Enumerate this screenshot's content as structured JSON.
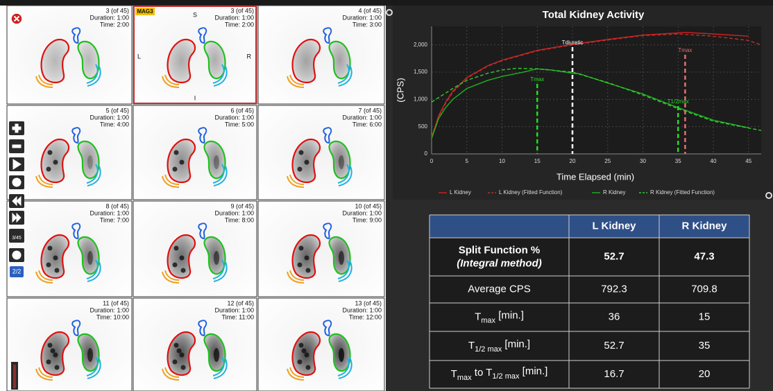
{
  "viewer": {
    "tag": "MAG3",
    "orientation": {
      "top": "S",
      "left": "L",
      "right": "R",
      "bottom": "I"
    },
    "frame_counter": "3/45",
    "page_counter": "2/2",
    "frames": [
      {
        "number": "3 (of 45)",
        "duration": "Duration: 1:00",
        "time": "Time: 2:00"
      },
      {
        "number": "3 (of 45)",
        "duration": "Duration: 1:00",
        "time": "Time: 2:00"
      },
      {
        "number": "4 (of 45)",
        "duration": "Duration: 1:00",
        "time": "Time: 3:00"
      },
      {
        "number": "5 (of 45)",
        "duration": "Duration: 1:00",
        "time": "Time: 4:00"
      },
      {
        "number": "6 (of 45)",
        "duration": "Duration: 1:00",
        "time": "Time: 5:00"
      },
      {
        "number": "7 (of 45)",
        "duration": "Duration: 1:00",
        "time": "Time: 6:00"
      },
      {
        "number": "8 (of 45)",
        "duration": "Duration: 1:00",
        "time": "Time: 7:00"
      },
      {
        "number": "9 (of 45)",
        "duration": "Duration: 1:00",
        "time": "Time: 8:00"
      },
      {
        "number": "10 (of 45)",
        "duration": "Duration: 1:00",
        "time": "Time: 9:00"
      },
      {
        "number": "11 (of 45)",
        "duration": "Duration: 1:00",
        "time": "Time: 10:00"
      },
      {
        "number": "12 (of 45)",
        "duration": "Duration: 1:00",
        "time": "Time: 11:00"
      },
      {
        "number": "13 (of 45)",
        "duration": "Duration: 1:00",
        "time": "Time: 12:00"
      }
    ]
  },
  "chart": {
    "type": "line",
    "title": "Total Kidney Activity",
    "xlabel": "Time Elapsed (min)",
    "ylabel": "(CPS)",
    "xlim": [
      0,
      46.8
    ],
    "ylim": [
      0,
      2340
    ],
    "xticks": [
      0,
      5,
      10,
      15,
      20,
      25,
      30,
      35,
      40,
      45
    ],
    "yticks": [
      0,
      500,
      {
        "value": 1000,
        "label": "1,000"
      },
      {
        "value": 1500,
        "label": "1,500"
      },
      {
        "value": 2000,
        "label": "2,000"
      }
    ],
    "grid": true,
    "series": [
      {
        "name": "L Kidney",
        "color": "#d42020",
        "dashed": false,
        "x": [
          0,
          1,
          2,
          3,
          5,
          8,
          10,
          15,
          20,
          25,
          30,
          35,
          36,
          40,
          45
        ],
        "values": [
          300,
          700,
          950,
          1150,
          1400,
          1620,
          1720,
          1900,
          2010,
          2100,
          2180,
          2220,
          2230,
          2200,
          2160
        ]
      },
      {
        "name": "L Kidney (Fitted Function)",
        "color": "#b83030",
        "dashed": true,
        "x": [
          0,
          1,
          2,
          3,
          5,
          8,
          10,
          15,
          20,
          25,
          30,
          35,
          40,
          45,
          46.8
        ],
        "values": [
          320,
          680,
          930,
          1130,
          1390,
          1610,
          1710,
          1890,
          2000,
          2090,
          2170,
          2200,
          2160,
          2080,
          2000
        ]
      },
      {
        "name": "R Kidney",
        "color": "#1fb31f",
        "dashed": false,
        "x": [
          0,
          1,
          2,
          3,
          5,
          8,
          10,
          13,
          15,
          17,
          20,
          21,
          25,
          30,
          35,
          40,
          45
        ],
        "values": [
          280,
          650,
          850,
          1000,
          1200,
          1350,
          1420,
          1500,
          1560,
          1540,
          1480,
          1470,
          1300,
          1100,
          850,
          620,
          480
        ]
      },
      {
        "name": "R Kidney (Fitted Function)",
        "color": "#33cc33",
        "dashed": true,
        "x": [
          0,
          3,
          5,
          8,
          10,
          12,
          15,
          20,
          25,
          30,
          35,
          40,
          46.8
        ],
        "values": [
          950,
          1200,
          1350,
          1480,
          1540,
          1570,
          1560,
          1500,
          1310,
          1080,
          830,
          600,
          430
        ]
      }
    ],
    "annotations": [
      {
        "text": "Tmax",
        "x": 15,
        "color": "#22dd22"
      },
      {
        "text": "Tdiuretic",
        "x": 20,
        "color": "#ffffff"
      },
      {
        "text": "T1/2max",
        "x": 35,
        "color": "#22dd22"
      },
      {
        "text": "Tmax",
        "x": 36,
        "color": "#e07070"
      }
    ]
  },
  "table": {
    "header": [
      "L Kidney",
      "R Kidney"
    ],
    "rows": [
      {
        "label": [
          {
            "text": "Split Function %"
          },
          {
            "text": "(Integral method)"
          }
        ],
        "values": [
          52.7,
          47.3
        ]
      },
      {
        "label": [
          {
            "text": "Average CPS"
          }
        ],
        "values": [
          792.3,
          709.8
        ]
      },
      {
        "label": [
          {
            "text": "T"
          },
          {
            "sub": "max"
          },
          {
            "text": " [min.]"
          }
        ],
        "values": [
          36,
          15
        ]
      },
      {
        "label": [
          {
            "text": "T"
          },
          {
            "sub": "1/2 max"
          },
          {
            "text": " [min.]"
          }
        ],
        "values": [
          52.7,
          35
        ]
      },
      {
        "label": [
          {
            "text": "T"
          },
          {
            "sub": "max"
          },
          {
            "text": " to T"
          },
          {
            "sub": "1/2 max"
          },
          {
            "text": " [min.]"
          }
        ],
        "values": [
          16.7,
          20
        ]
      }
    ]
  }
}
